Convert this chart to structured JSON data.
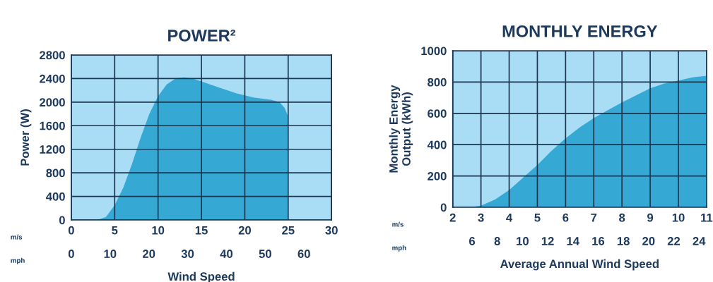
{
  "chart_data": [
    {
      "type": "area",
      "title": "POWER²",
      "xlabel": "Wind Speed",
      "ylabel": "Power (W)",
      "x": [
        0,
        3,
        4,
        5,
        6,
        7,
        8,
        9,
        10,
        11,
        12,
        13,
        14,
        15,
        17,
        19,
        21,
        23,
        24,
        24.6,
        25,
        25,
        30
      ],
      "series": [
        {
          "color": "#35a8d4",
          "values": [
            0,
            0,
            50,
            250,
            550,
            950,
            1400,
            1800,
            2100,
            2300,
            2400,
            2420,
            2400,
            2350,
            2250,
            2150,
            2080,
            2040,
            2000,
            1900,
            1750,
            0,
            0
          ]
        }
      ],
      "xlim": [
        0,
        30
      ],
      "xticks": [
        0,
        5,
        10,
        15,
        20,
        25,
        30
      ],
      "x2lim": [
        0,
        67.1
      ],
      "x2ticks": [
        0,
        10,
        20,
        30,
        40,
        50,
        60
      ],
      "ylim": [
        0,
        2800
      ],
      "yticks": [
        0,
        400,
        800,
        1200,
        1600,
        2000,
        2400,
        2800
      ],
      "grid": true,
      "annotations": [
        "m/s",
        "mph"
      ]
    },
    {
      "type": "area",
      "title": "MONTHLY ENERGY",
      "xlabel": "Average Annual Wind Speed",
      "ylabel": "Monthly Energy\nOutput (kWh)",
      "x": [
        2,
        2.6,
        3,
        3.5,
        4,
        4.5,
        5,
        5.5,
        6,
        6.5,
        7,
        7.5,
        8,
        8.5,
        9,
        9.5,
        10,
        10.5,
        11
      ],
      "series": [
        {
          "color": "#35a8d4",
          "values": [
            0,
            0,
            10,
            50,
            110,
            190,
            270,
            360,
            440,
            510,
            570,
            620,
            670,
            715,
            760,
            790,
            810,
            830,
            840
          ]
        }
      ],
      "xlim": [
        2,
        11
      ],
      "xticks": [
        2,
        3,
        4,
        5,
        6,
        7,
        8,
        9,
        10,
        11
      ],
      "x2lim": [
        4.47,
        24.6
      ],
      "x2ticks": [
        6,
        8,
        10,
        12,
        14,
        16,
        18,
        20,
        22,
        24
      ],
      "ylim": [
        0,
        1000
      ],
      "yticks": [
        0,
        200,
        400,
        600,
        800,
        1000
      ],
      "grid": true,
      "annotations": [
        "m/s",
        "mph"
      ]
    }
  ]
}
